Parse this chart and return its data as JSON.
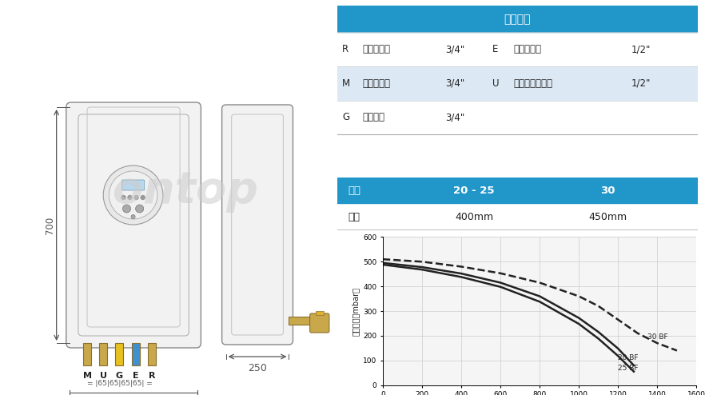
{
  "bg_color": "#ffffff",
  "table1_header": "管路连接",
  "table1_header_bg": "#2196C9",
  "table1_header_color": "#ffffff",
  "table1_rows": [
    [
      "R",
      "供暖回水口",
      "3/4\"",
      "E",
      "自来水接口",
      "1/2\""
    ],
    [
      "M",
      "供暖出水口",
      "3/4\"",
      "U",
      "生活热水出水口",
      "1/2\""
    ],
    [
      "G",
      "燃气接口",
      "3/4\"",
      "",
      "",
      ""
    ]
  ],
  "table1_alt_color": "#dce9f5",
  "table2_header": [
    "尺寸",
    "20 - 25",
    "30"
  ],
  "table2_header_bg": "#2196C9",
  "table2_header_color": "#ffffff",
  "table2_row": [
    "宽度",
    "400mm",
    "450mm"
  ],
  "chart_ylabel": "出口压力（mbar）",
  "chart_xticks": [
    0,
    200,
    400,
    600,
    800,
    1000,
    1200,
    1400,
    1600
  ],
  "chart_yticks": [
    0,
    100,
    200,
    300,
    400,
    500,
    600
  ],
  "curve_30BF_x": [
    0,
    200,
    400,
    600,
    800,
    1000,
    1100,
    1200,
    1300,
    1400,
    1500
  ],
  "curve_30BF_y": [
    510,
    500,
    480,
    453,
    415,
    360,
    320,
    265,
    210,
    170,
    140
  ],
  "curve_20BF_x": [
    0,
    200,
    400,
    600,
    800,
    1000,
    1100,
    1200,
    1280
  ],
  "curve_20BF_y": [
    495,
    478,
    452,
    415,
    360,
    272,
    215,
    148,
    80
  ],
  "curve_25BF_x": [
    0,
    200,
    400,
    600,
    800,
    1000,
    1100,
    1200,
    1280
  ],
  "curve_25BF_y": [
    488,
    468,
    438,
    398,
    338,
    248,
    188,
    118,
    55
  ],
  "grid_color": "#cccccc",
  "curve_color": "#222222",
  "dim_color": "#555555",
  "label_color": "#222222",
  "ontop_color": "#cccccc",
  "pipe_gold": "#c8a84b",
  "pipe_yellow": "#e8c020",
  "pipe_blue": "#4090d0"
}
